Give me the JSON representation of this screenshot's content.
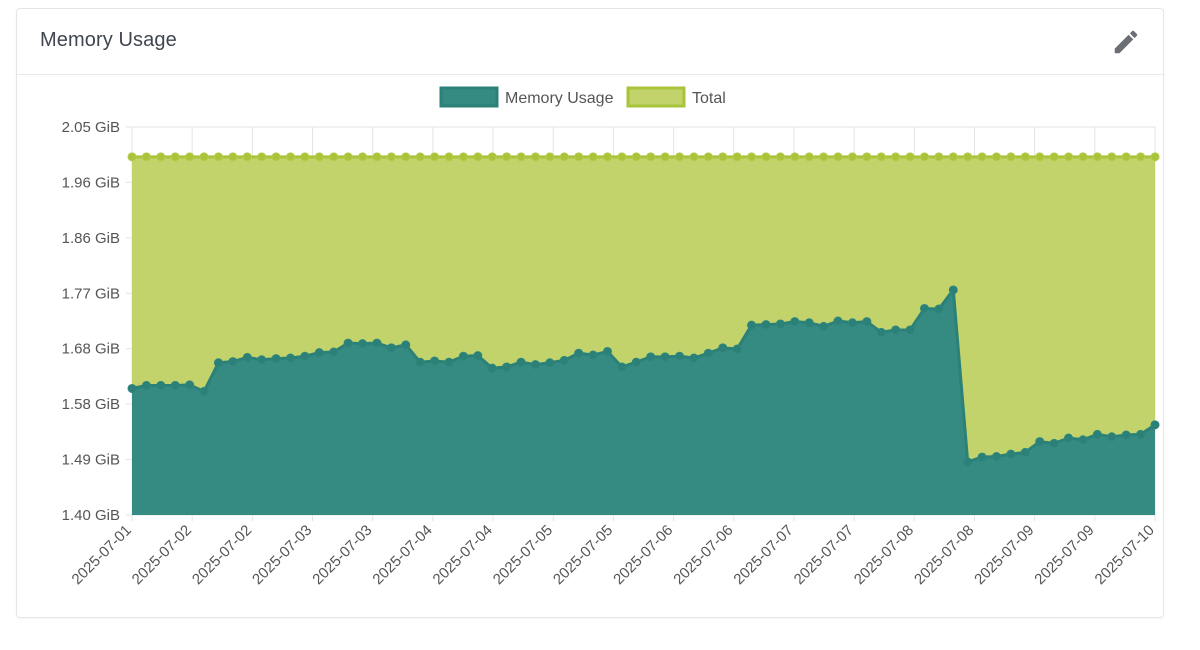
{
  "card": {
    "title": "Memory Usage",
    "edit_icon": "pencil-icon"
  },
  "colors": {
    "memory_fill": "#358b82",
    "memory_line": "#2b8077",
    "total_fill": "#c1d36a",
    "total_line": "#a9c43a",
    "grid": "#e3e3e3",
    "axis_text": "#555555"
  },
  "chart_data": {
    "type": "area",
    "legend_position": "top-center",
    "grid": true,
    "ylim": [
      1.4,
      2.05
    ],
    "yticks": [
      "2.05 GiB",
      "1.96 GiB",
      "1.86 GiB",
      "1.77 GiB",
      "1.68 GiB",
      "1.58 GiB",
      "1.49 GiB",
      "1.40 GiB"
    ],
    "xticks": [
      "2025-07-01",
      "2025-07-02",
      "2025-07-02",
      "2025-07-03",
      "2025-07-03",
      "2025-07-04",
      "2025-07-04",
      "2025-07-05",
      "2025-07-05",
      "2025-07-06",
      "2025-07-06",
      "2025-07-07",
      "2025-07-07",
      "2025-07-08",
      "2025-07-08",
      "2025-07-09",
      "2025-07-09",
      "2025-07-10"
    ],
    "series": [
      {
        "name": "Memory Usage",
        "values": [
          1.612,
          1.617,
          1.617,
          1.617,
          1.618,
          1.607,
          1.655,
          1.657,
          1.664,
          1.66,
          1.662,
          1.663,
          1.666,
          1.672,
          1.673,
          1.688,
          1.687,
          1.688,
          1.68,
          1.685,
          1.656,
          1.658,
          1.656,
          1.666,
          1.667,
          1.646,
          1.648,
          1.656,
          1.652,
          1.655,
          1.659,
          1.671,
          1.668,
          1.674,
          1.648,
          1.656,
          1.665,
          1.665,
          1.666,
          1.663,
          1.671,
          1.68,
          1.678,
          1.718,
          1.719,
          1.72,
          1.724,
          1.722,
          1.716,
          1.725,
          1.722,
          1.724,
          1.706,
          1.71,
          1.71,
          1.746,
          1.745,
          1.777,
          1.489,
          1.497,
          1.498,
          1.502,
          1.505,
          1.523,
          1.52,
          1.529,
          1.526,
          1.535,
          1.531,
          1.534,
          1.535,
          1.551
        ]
      },
      {
        "name": "Total",
        "values": [
          2.0,
          2.0,
          2.0,
          2.0,
          2.0,
          2.0,
          2.0,
          2.0,
          2.0,
          2.0,
          2.0,
          2.0,
          2.0,
          2.0,
          2.0,
          2.0,
          2.0,
          2.0,
          2.0,
          2.0,
          2.0,
          2.0,
          2.0,
          2.0,
          2.0,
          2.0,
          2.0,
          2.0,
          2.0,
          2.0,
          2.0,
          2.0,
          2.0,
          2.0,
          2.0,
          2.0,
          2.0,
          2.0,
          2.0,
          2.0,
          2.0,
          2.0,
          2.0,
          2.0,
          2.0,
          2.0,
          2.0,
          2.0,
          2.0,
          2.0,
          2.0,
          2.0,
          2.0,
          2.0,
          2.0,
          2.0,
          2.0,
          2.0,
          2.0,
          2.0,
          2.0,
          2.0,
          2.0,
          2.0,
          2.0,
          2.0,
          2.0,
          2.0,
          2.0,
          2.0,
          2.0,
          2.0
        ]
      }
    ]
  }
}
